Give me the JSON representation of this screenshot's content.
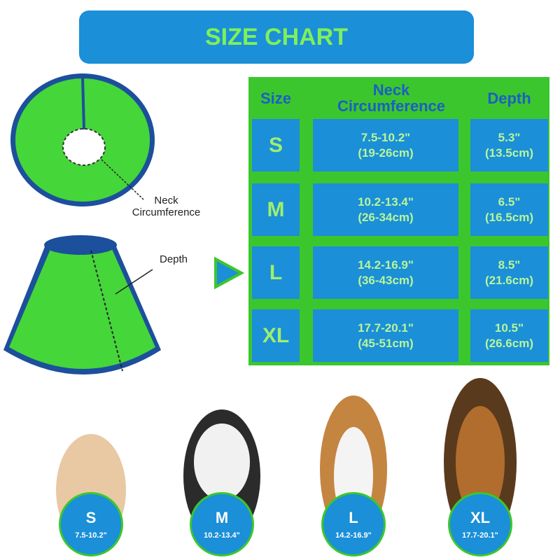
{
  "title": "SIZE CHART",
  "annotations": {
    "neck": "Neck Circumference",
    "depth": "Depth"
  },
  "table": {
    "headers": [
      "Size",
      "Neck Circumference",
      "Depth"
    ],
    "rows": [
      {
        "size": "S",
        "neck": [
          "7.5-10.2\"",
          "(19-26cm)"
        ],
        "depth": [
          "5.3\"",
          "(13.5cm)"
        ]
      },
      {
        "size": "M",
        "neck": [
          "10.2-13.4\"",
          "(26-34cm)"
        ],
        "depth": [
          "6.5\"",
          "(16.5cm)"
        ]
      },
      {
        "size": "L",
        "neck": [
          "14.2-16.9\"",
          "(36-43cm)"
        ],
        "depth": [
          "8.5\"",
          "(21.6cm)"
        ]
      },
      {
        "size": "XL",
        "neck": [
          "17.7-20.1\"",
          "(45-51cm)"
        ],
        "depth": [
          "10.5\"",
          "(26.6cm)"
        ]
      }
    ]
  },
  "badges": [
    {
      "size": "S",
      "range": "7.5-10.2\""
    },
    {
      "size": "M",
      "range": "10.2-13.4\""
    },
    {
      "size": "L",
      "range": "14.2-16.9\""
    },
    {
      "size": "XL",
      "range": "17.7-20.1\""
    }
  ]
}
